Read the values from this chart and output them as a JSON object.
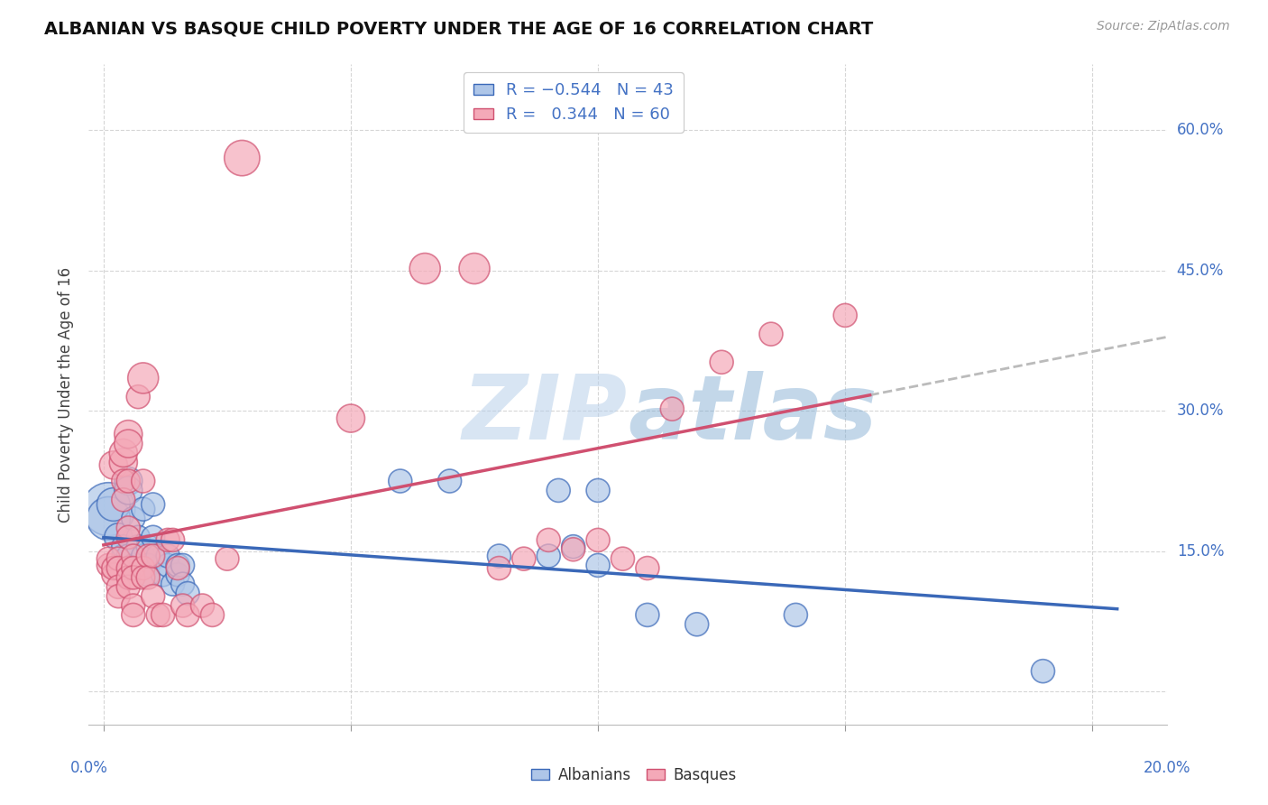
{
  "title": "ALBANIAN VS BASQUE CHILD POVERTY UNDER THE AGE OF 16 CORRELATION CHART",
  "source": "Source: ZipAtlas.com",
  "ylabel": "Child Poverty Under the Age of 16",
  "x_ticks": [
    0.0,
    0.05,
    0.1,
    0.15,
    0.2
  ],
  "y_ticks": [
    0.0,
    0.15,
    0.3,
    0.45,
    0.6
  ],
  "xlim": [
    -0.003,
    0.215
  ],
  "ylim": [
    -0.035,
    0.67
  ],
  "albanians_R": -0.544,
  "albanians_N": 43,
  "basques_R": 0.344,
  "basques_N": 60,
  "albanian_color": "#aec6e8",
  "basque_color": "#f4a9b8",
  "albanian_line_color": "#3a68b8",
  "basque_line_color": "#d05070",
  "watermark_color": "#ccdff5",
  "background_color": "#ffffff",
  "grid_color": "#cccccc",
  "right_label_color": "#4472c4",
  "title_color": "#111111",
  "source_color": "#999999",
  "albanian_scatter": [
    [
      0.001,
      0.195
    ],
    [
      0.001,
      0.185
    ],
    [
      0.002,
      0.2
    ],
    [
      0.003,
      0.165
    ],
    [
      0.004,
      0.145
    ],
    [
      0.004,
      0.155
    ],
    [
      0.005,
      0.225
    ],
    [
      0.005,
      0.215
    ],
    [
      0.005,
      0.145
    ],
    [
      0.006,
      0.185
    ],
    [
      0.006,
      0.135
    ],
    [
      0.006,
      0.132
    ],
    [
      0.007,
      0.165
    ],
    [
      0.007,
      0.155
    ],
    [
      0.008,
      0.195
    ],
    [
      0.008,
      0.145
    ],
    [
      0.009,
      0.155
    ],
    [
      0.009,
      0.135
    ],
    [
      0.009,
      0.125
    ],
    [
      0.01,
      0.2
    ],
    [
      0.01,
      0.165
    ],
    [
      0.011,
      0.145
    ],
    [
      0.012,
      0.125
    ],
    [
      0.013,
      0.135
    ],
    [
      0.013,
      0.145
    ],
    [
      0.014,
      0.115
    ],
    [
      0.015,
      0.125
    ],
    [
      0.015,
      0.135
    ],
    [
      0.016,
      0.135
    ],
    [
      0.016,
      0.115
    ],
    [
      0.017,
      0.105
    ],
    [
      0.06,
      0.225
    ],
    [
      0.07,
      0.225
    ],
    [
      0.08,
      0.145
    ],
    [
      0.09,
      0.145
    ],
    [
      0.092,
      0.215
    ],
    [
      0.095,
      0.155
    ],
    [
      0.1,
      0.215
    ],
    [
      0.1,
      0.135
    ],
    [
      0.11,
      0.082
    ],
    [
      0.12,
      0.072
    ],
    [
      0.14,
      0.082
    ],
    [
      0.19,
      0.022
    ]
  ],
  "basque_scatter": [
    [
      0.001,
      0.135
    ],
    [
      0.001,
      0.142
    ],
    [
      0.002,
      0.125
    ],
    [
      0.002,
      0.132
    ],
    [
      0.002,
      0.242
    ],
    [
      0.003,
      0.142
    ],
    [
      0.003,
      0.132
    ],
    [
      0.003,
      0.112
    ],
    [
      0.003,
      0.102
    ],
    [
      0.004,
      0.245
    ],
    [
      0.004,
      0.255
    ],
    [
      0.004,
      0.225
    ],
    [
      0.004,
      0.205
    ],
    [
      0.005,
      0.275
    ],
    [
      0.005,
      0.265
    ],
    [
      0.005,
      0.225
    ],
    [
      0.005,
      0.175
    ],
    [
      0.005,
      0.165
    ],
    [
      0.005,
      0.132
    ],
    [
      0.005,
      0.122
    ],
    [
      0.005,
      0.112
    ],
    [
      0.006,
      0.145
    ],
    [
      0.006,
      0.132
    ],
    [
      0.006,
      0.122
    ],
    [
      0.006,
      0.092
    ],
    [
      0.006,
      0.082
    ],
    [
      0.007,
      0.315
    ],
    [
      0.008,
      0.335
    ],
    [
      0.008,
      0.225
    ],
    [
      0.008,
      0.132
    ],
    [
      0.008,
      0.122
    ],
    [
      0.009,
      0.145
    ],
    [
      0.009,
      0.122
    ],
    [
      0.01,
      0.145
    ],
    [
      0.01,
      0.102
    ],
    [
      0.011,
      0.082
    ],
    [
      0.012,
      0.082
    ],
    [
      0.013,
      0.162
    ],
    [
      0.014,
      0.162
    ],
    [
      0.015,
      0.132
    ],
    [
      0.016,
      0.092
    ],
    [
      0.017,
      0.082
    ],
    [
      0.02,
      0.092
    ],
    [
      0.022,
      0.082
    ],
    [
      0.025,
      0.142
    ],
    [
      0.028,
      0.57
    ],
    [
      0.05,
      0.292
    ],
    [
      0.065,
      0.452
    ],
    [
      0.075,
      0.452
    ],
    [
      0.08,
      0.132
    ],
    [
      0.085,
      0.142
    ],
    [
      0.09,
      0.162
    ],
    [
      0.095,
      0.152
    ],
    [
      0.1,
      0.162
    ],
    [
      0.105,
      0.142
    ],
    [
      0.11,
      0.132
    ],
    [
      0.115,
      0.302
    ],
    [
      0.125,
      0.352
    ],
    [
      0.135,
      0.382
    ],
    [
      0.15,
      0.402
    ]
  ],
  "albanian_sizes": [
    1800,
    1200,
    700,
    500,
    350,
    350,
    500,
    500,
    350,
    350,
    350,
    350,
    350,
    350,
    350,
    350,
    350,
    350,
    350,
    350,
    350,
    350,
    350,
    350,
    350,
    350,
    350,
    350,
    350,
    350,
    350,
    350,
    350,
    350,
    350,
    350,
    350,
    350,
    350,
    350,
    350,
    350,
    350
  ],
  "basque_sizes": [
    350,
    350,
    350,
    350,
    500,
    350,
    350,
    350,
    350,
    500,
    500,
    350,
    350,
    500,
    500,
    350,
    350,
    350,
    350,
    350,
    350,
    350,
    350,
    350,
    350,
    350,
    350,
    600,
    350,
    350,
    350,
    350,
    350,
    350,
    350,
    350,
    350,
    350,
    350,
    350,
    350,
    350,
    350,
    350,
    350,
    800,
    500,
    600,
    600,
    350,
    350,
    350,
    350,
    350,
    350,
    350,
    350,
    350,
    350,
    350
  ]
}
